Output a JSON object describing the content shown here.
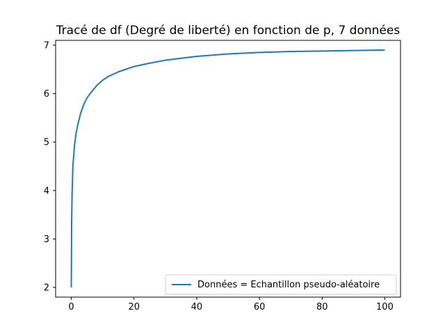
{
  "chart_data": {
    "type": "line",
    "title": "Tracé de df (Degré de liberté) en fonction de p, 7 données",
    "xlabel": "",
    "ylabel": "",
    "xlim": [
      -5,
      105
    ],
    "ylim": [
      1.8,
      7.1
    ],
    "xticks": [
      0,
      20,
      40,
      60,
      80,
      100
    ],
    "yticks": [
      2,
      3,
      4,
      5,
      6,
      7
    ],
    "grid": false,
    "legend_position": "lower-right",
    "series": [
      {
        "name": "Données = Echantillon pseudo-aléatoire",
        "color": "#1f77b4",
        "x": [
          0,
          0.1,
          0.25,
          0.5,
          1,
          1.5,
          2,
          3,
          4,
          5,
          6,
          8,
          10,
          12,
          15,
          20,
          25,
          30,
          40,
          50,
          60,
          70,
          80,
          90,
          100
        ],
        "y": [
          2.0,
          3.3,
          3.94,
          4.5,
          4.92,
          5.17,
          5.34,
          5.6,
          5.78,
          5.91,
          6.0,
          6.16,
          6.28,
          6.36,
          6.45,
          6.56,
          6.63,
          6.69,
          6.77,
          6.82,
          6.85,
          6.87,
          6.88,
          6.89,
          6.9
        ]
      }
    ]
  }
}
